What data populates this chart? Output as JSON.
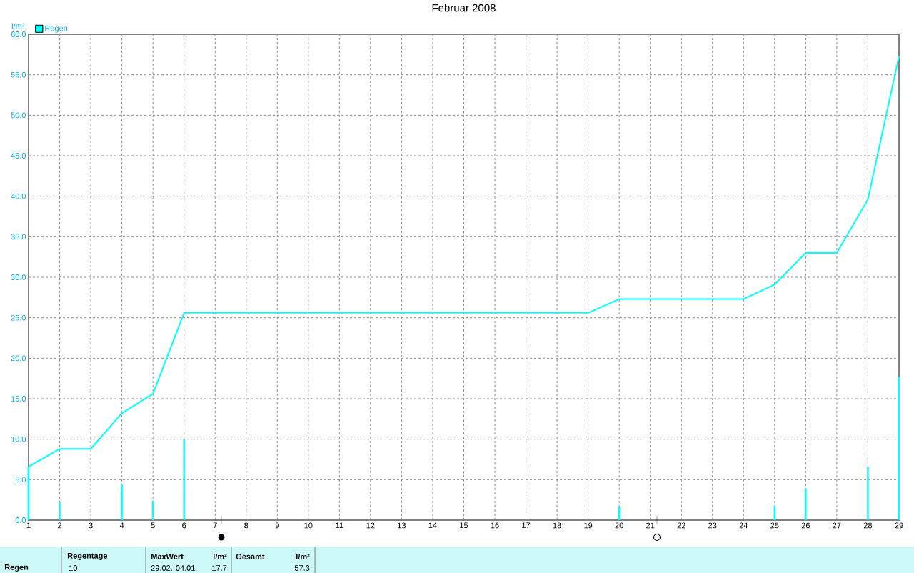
{
  "chart_data": {
    "type": "line",
    "title": "Februar 2008",
    "ylabel": "l/m²",
    "x": [
      1,
      2,
      3,
      4,
      5,
      6,
      7,
      8,
      9,
      10,
      11,
      12,
      13,
      14,
      15,
      16,
      17,
      18,
      19,
      20,
      21,
      22,
      23,
      24,
      25,
      26,
      27,
      28,
      29
    ],
    "series": [
      {
        "name": "Regen",
        "color": "#00ffff",
        "values": [
          6.6,
          8.8,
          8.8,
          13.2,
          15.6,
          25.6,
          25.6,
          25.6,
          25.6,
          25.6,
          25.6,
          25.6,
          25.6,
          25.6,
          25.6,
          25.6,
          25.6,
          25.6,
          25.6,
          27.3,
          27.3,
          27.3,
          27.3,
          27.3,
          29.1,
          33.0,
          33.0,
          39.6,
          57.3
        ]
      },
      {
        "type": "bar",
        "color": "#00ffff",
        "x": [
          1,
          2,
          4,
          5,
          6,
          20,
          25,
          26,
          28,
          29
        ],
        "values": [
          6.6,
          2.2,
          4.4,
          2.4,
          10.0,
          1.7,
          1.8,
          3.9,
          6.6,
          17.7
        ]
      }
    ],
    "xlim": [
      1,
      29
    ],
    "xticks": [
      1,
      2,
      3,
      4,
      5,
      6,
      7,
      8,
      9,
      10,
      11,
      12,
      13,
      14,
      15,
      16,
      17,
      18,
      19,
      20,
      21,
      22,
      23,
      24,
      25,
      26,
      27,
      28,
      29
    ],
    "ylim": [
      0,
      60
    ],
    "yticks": [
      {
        "value": 0,
        "label": "0.0"
      },
      {
        "value": 5,
        "label": "5.0"
      },
      {
        "value": 10,
        "label": "10.0"
      },
      {
        "value": 15,
        "label": "15.0"
      },
      {
        "value": 20,
        "label": "20.0"
      },
      {
        "value": 25,
        "label": "25.0"
      },
      {
        "value": 30,
        "label": "30.0"
      },
      {
        "value": 35,
        "label": "35.0"
      },
      {
        "value": 40,
        "label": "40.0"
      },
      {
        "value": 45,
        "label": "45.0"
      },
      {
        "value": 50,
        "label": "50.0"
      },
      {
        "value": 55,
        "label": "55.0"
      },
      {
        "value": 60,
        "label": "60.0"
      }
    ],
    "grid": true,
    "legend": "top left",
    "marker": "none",
    "line_style": "solid",
    "annotations": [
      "Regen",
      "Regentage",
      "10",
      "MaxWert",
      "l/m²",
      "29.02.  04:01",
      "17.7",
      "Gesamt",
      "l/m²",
      "57.3"
    ]
  }
}
